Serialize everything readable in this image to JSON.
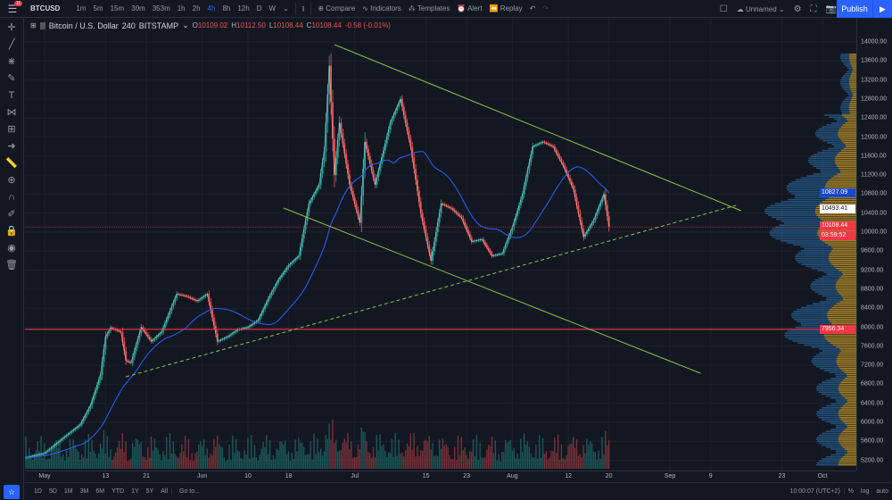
{
  "toolbar": {
    "notification_count": "11",
    "symbol": "BTCUSD",
    "intervals": [
      "1m",
      "5m",
      "15m",
      "30m",
      "353m",
      "1h",
      "2h",
      "4h",
      "8h",
      "12h",
      "D",
      "W"
    ],
    "active_interval": "4h",
    "compare": "Compare",
    "indicators": "Indicators",
    "templates": "Templates",
    "alert": "Alert",
    "replay": "Replay",
    "layout_name": "Unnamed",
    "publish": "Publish"
  },
  "legend": {
    "title": "Bitcoin / U.S. Dollar",
    "interval": "240",
    "exchange": "BITSTAMP",
    "open_label": "O",
    "open": "10109.02",
    "high_label": "H",
    "high": "10112.50",
    "low_label": "L",
    "low": "10108.44",
    "close_label": "C",
    "close": "10108.44",
    "change": "-0.58 (-0.01%)"
  },
  "price_labels": {
    "blue": "10827.09",
    "white": "10493.41",
    "last": "10108.44",
    "countdown": "03:59:52",
    "level": "7956.34"
  },
  "bottombar": {
    "ranges": [
      "1D",
      "5D",
      "1M",
      "3M",
      "6M",
      "YTD",
      "1Y",
      "5Y",
      "All"
    ],
    "goto": "Go to...",
    "time": "10:00:07 (UTC+2)",
    "pct": "%",
    "log": "log",
    "auto": "auto"
  },
  "colors": {
    "background": "#131722",
    "up": "#26a69a",
    "down": "#ef5350",
    "ma": "#2962ff",
    "trendline": "#8bc34a",
    "hline": "#f23645",
    "accent": "#2962ff",
    "profile_up": "#2f7fc1",
    "profile_down": "#c89b2a"
  },
  "chart_data": {
    "type": "candlestick",
    "symbol": "Bitcoin / U.S. Dollar",
    "ylim": [
      5000,
      14500
    ],
    "yticks": [
      14000,
      13600,
      13200,
      12800,
      12400,
      12000,
      11600,
      11200,
      10800,
      10400,
      10000,
      9600,
      9200,
      8800,
      8400,
      8000,
      7600,
      7200,
      6800,
      6400,
      6000,
      5600,
      5200
    ],
    "xticks": [
      {
        "d": "2019-05-01",
        "l": "May"
      },
      {
        "d": "2019-05-13",
        "l": "13"
      },
      {
        "d": "2019-05-21",
        "l": "21"
      },
      {
        "d": "2019-06-01",
        "l": "Jun"
      },
      {
        "d": "2019-06-10",
        "l": "10"
      },
      {
        "d": "2019-06-18",
        "l": "18"
      },
      {
        "d": "2019-07-01",
        "l": "Jul"
      },
      {
        "d": "2019-07-15",
        "l": "15"
      },
      {
        "d": "2019-07-23",
        "l": "23"
      },
      {
        "d": "2019-08-01",
        "l": "Aug"
      },
      {
        "d": "2019-08-12",
        "l": "12"
      },
      {
        "d": "2019-08-20",
        "l": "20"
      },
      {
        "d": "2019-09-01",
        "l": "Sep"
      },
      {
        "d": "2019-09-09",
        "l": "9"
      },
      {
        "d": "2019-09-23",
        "l": "23"
      },
      {
        "d": "2019-10-01",
        "l": "Oct"
      }
    ],
    "closes": [
      [
        "2019-04-27",
        5250
      ],
      [
        "2019-05-01",
        5350
      ],
      [
        "2019-05-05",
        5700
      ],
      [
        "2019-05-08",
        5950
      ],
      [
        "2019-05-10",
        6350
      ],
      [
        "2019-05-12",
        7000
      ],
      [
        "2019-05-13",
        7800
      ],
      [
        "2019-05-14",
        7990
      ],
      [
        "2019-05-16",
        7900
      ],
      [
        "2019-05-17",
        7300
      ],
      [
        "2019-05-18",
        7250
      ],
      [
        "2019-05-20",
        8000
      ],
      [
        "2019-05-22",
        7700
      ],
      [
        "2019-05-24",
        7900
      ],
      [
        "2019-05-27",
        8700
      ],
      [
        "2019-05-29",
        8650
      ],
      [
        "2019-05-31",
        8550
      ],
      [
        "2019-06-02",
        8700
      ],
      [
        "2019-06-04",
        7700
      ],
      [
        "2019-06-06",
        7800
      ],
      [
        "2019-06-08",
        7950
      ],
      [
        "2019-06-10",
        8000
      ],
      [
        "2019-06-12",
        8150
      ],
      [
        "2019-06-14",
        8600
      ],
      [
        "2019-06-16",
        9000
      ],
      [
        "2019-06-18",
        9300
      ],
      [
        "2019-06-20",
        9500
      ],
      [
        "2019-06-22",
        10600
      ],
      [
        "2019-06-24",
        11000
      ],
      [
        "2019-06-25",
        11700
      ],
      [
        "2019-06-26",
        13500
      ],
      [
        "2019-06-27",
        11200
      ],
      [
        "2019-06-28",
        12300
      ],
      [
        "2019-06-30",
        11000
      ],
      [
        "2019-07-02",
        10200
      ],
      [
        "2019-07-03",
        11900
      ],
      [
        "2019-07-05",
        11000
      ],
      [
        "2019-07-08",
        12300
      ],
      [
        "2019-07-10",
        12800
      ],
      [
        "2019-07-12",
        11800
      ],
      [
        "2019-07-14",
        10400
      ],
      [
        "2019-07-16",
        9400
      ],
      [
        "2019-07-18",
        10600
      ],
      [
        "2019-07-20",
        10500
      ],
      [
        "2019-07-22",
        10300
      ],
      [
        "2019-07-24",
        9800
      ],
      [
        "2019-07-26",
        9850
      ],
      [
        "2019-07-28",
        9500
      ],
      [
        "2019-07-30",
        9550
      ],
      [
        "2019-08-01",
        10100
      ],
      [
        "2019-08-03",
        10800
      ],
      [
        "2019-08-05",
        11800
      ],
      [
        "2019-08-07",
        11900
      ],
      [
        "2019-08-09",
        11800
      ],
      [
        "2019-08-11",
        11400
      ],
      [
        "2019-08-13",
        10900
      ],
      [
        "2019-08-15",
        9900
      ],
      [
        "2019-08-17",
        10250
      ],
      [
        "2019-08-19",
        10800
      ],
      [
        "2019-08-20",
        10108.44
      ]
    ],
    "moving_average": {
      "color": "#2962ff"
    },
    "trendlines": [
      {
        "style": "solid",
        "from": [
          "2019-06-27",
          13944
        ],
        "to": [
          "2019-09-15",
          10451
        ]
      },
      {
        "style": "solid",
        "from": [
          "2019-06-17",
          10507
        ],
        "to": [
          "2019-09-07",
          7033
        ]
      },
      {
        "style": "dashed",
        "from": [
          "2019-05-17",
          6958
        ],
        "to": [
          "2019-09-14",
          10563
        ]
      }
    ],
    "horizontal_lines": [
      10108.44,
      7956.34
    ]
  }
}
